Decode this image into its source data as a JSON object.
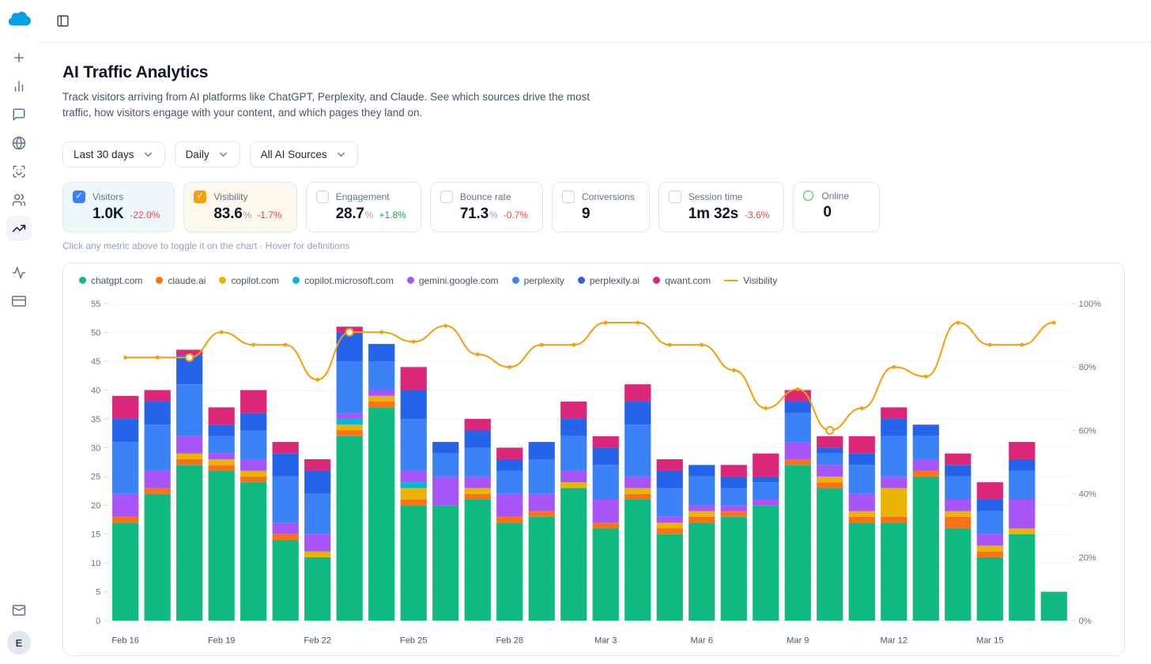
{
  "brand": {
    "color": "#00a1e0"
  },
  "topbar": {
    "toggle_icon": "panel-left-icon"
  },
  "sidebar": {
    "items": [
      {
        "icon": "plus-icon"
      },
      {
        "icon": "bar-chart-icon"
      },
      {
        "icon": "chat-icon"
      },
      {
        "icon": "globe-icon"
      },
      {
        "icon": "scan-face-icon"
      },
      {
        "icon": "users-icon"
      },
      {
        "icon": "trending-up-icon",
        "active": true
      },
      {
        "icon": "activity-icon"
      },
      {
        "icon": "credit-card-icon"
      }
    ],
    "bottom": {
      "mail_icon": "mail-icon",
      "avatar_initial": "E"
    }
  },
  "page": {
    "title": "AI Traffic Analytics",
    "description": "Track visitors arriving from AI platforms like ChatGPT, Perplexity, and Claude. See which sources drive the most traffic, how visitors engage with your content, and which pages they land on.",
    "hint": "Click any metric above to toggle it on the chart · Hover for definitions"
  },
  "filters": [
    {
      "label": "Last 30 days"
    },
    {
      "label": "Daily"
    },
    {
      "label": "All AI Sources"
    }
  ],
  "metrics": [
    {
      "label": "Visitors",
      "value": "1.0K",
      "suffix": "",
      "delta": "-22.0%",
      "delta_dir": "down",
      "state": "checked-blue",
      "accent": "blue"
    },
    {
      "label": "Visibility",
      "value": "83.6",
      "suffix": "%",
      "delta": "-1.7%",
      "delta_dir": "down",
      "state": "checked-amber",
      "accent": "amber"
    },
    {
      "label": "Engagement",
      "value": "28.7",
      "suffix": "%",
      "delta": "+1.8%",
      "delta_dir": "up",
      "state": "unchecked",
      "accent": "none"
    },
    {
      "label": "Bounce rate",
      "value": "71.3",
      "suffix": "%",
      "delta": "-0.7%",
      "delta_dir": "down",
      "state": "unchecked",
      "accent": "none"
    },
    {
      "label": "Conversions",
      "value": "9",
      "suffix": "",
      "delta": "",
      "delta_dir": "none",
      "state": "unchecked",
      "accent": "none"
    },
    {
      "label": "Session time",
      "value": "1m 32s",
      "suffix": "",
      "delta": "-3.6%",
      "delta_dir": "down",
      "state": "unchecked",
      "accent": "none"
    },
    {
      "label": "Online",
      "value": "0",
      "suffix": "",
      "delta": "",
      "delta_dir": "none",
      "state": "online",
      "accent": "none"
    }
  ],
  "chart_data": {
    "type": "bar",
    "subtype": "stacked_bar_with_line",
    "title": "AI traffic by source with visibility overlay",
    "categories": [
      "Feb 16",
      "Feb 17",
      "Feb 18",
      "Feb 19",
      "Feb 20",
      "Feb 21",
      "Feb 22",
      "Feb 23",
      "Feb 24",
      "Feb 25",
      "Feb 26",
      "Feb 27",
      "Feb 28",
      "Mar 1",
      "Mar 2",
      "Mar 3",
      "Mar 4",
      "Mar 5",
      "Mar 6",
      "Mar 7",
      "Mar 8",
      "Mar 9",
      "Mar 10",
      "Mar 11",
      "Mar 12",
      "Mar 13",
      "Mar 14",
      "Mar 15",
      "Mar 16",
      "Mar 17"
    ],
    "series": [
      {
        "name": "chatgpt.com",
        "color": "#10b981",
        "values": [
          17,
          22,
          27,
          26,
          24,
          14,
          11,
          32,
          37,
          20,
          20,
          21,
          17,
          18,
          23,
          16,
          21,
          15,
          17,
          18,
          20,
          27,
          23,
          17,
          17,
          25,
          16,
          11,
          15,
          5
        ]
      },
      {
        "name": "claude.ai",
        "color": "#f97316",
        "values": [
          1,
          1,
          1,
          1,
          1,
          1,
          0,
          1,
          1,
          1,
          0,
          1,
          1,
          1,
          0,
          1,
          1,
          1,
          1,
          1,
          0,
          1,
          1,
          1,
          1,
          1,
          2,
          1,
          0,
          0
        ]
      },
      {
        "name": "copilot.com",
        "color": "#eab308",
        "values": [
          0,
          0,
          1,
          1,
          1,
          0,
          1,
          1,
          1,
          2,
          0,
          1,
          0,
          0,
          1,
          0,
          1,
          1,
          1,
          0,
          0,
          0,
          1,
          1,
          5,
          0,
          1,
          1,
          1,
          0
        ]
      },
      {
        "name": "copilot.microsoft.com",
        "color": "#06b6d4",
        "values": [
          0,
          0,
          0,
          0,
          0,
          0,
          0,
          1,
          0,
          1,
          0,
          0,
          0,
          0,
          0,
          0,
          0,
          0,
          0,
          0,
          0,
          0,
          0,
          0,
          0,
          0,
          0,
          0,
          0,
          0
        ]
      },
      {
        "name": "gemini.google.com",
        "color": "#a855f7",
        "values": [
          4,
          3,
          3,
          1,
          2,
          2,
          3,
          1,
          1,
          2,
          5,
          2,
          4,
          3,
          2,
          4,
          2,
          1,
          1,
          1,
          1,
          3,
          2,
          3,
          2,
          2,
          2,
          2,
          5,
          0
        ]
      },
      {
        "name": "perplexity",
        "color": "#3b82f6",
        "values": [
          9,
          8,
          9,
          3,
          5,
          8,
          7,
          9,
          5,
          9,
          4,
          5,
          4,
          6,
          6,
          6,
          9,
          5,
          5,
          3,
          3,
          5,
          2,
          5,
          7,
          4,
          4,
          4,
          5,
          0
        ]
      },
      {
        "name": "perplexity.ai",
        "color": "#2563eb",
        "values": [
          4,
          4,
          5,
          2,
          3,
          4,
          4,
          5,
          3,
          5,
          2,
          3,
          2,
          3,
          3,
          3,
          4,
          3,
          2,
          2,
          1,
          2,
          1,
          2,
          3,
          2,
          2,
          2,
          2,
          0
        ]
      },
      {
        "name": "qwant.com",
        "color": "#db2777",
        "values": [
          4,
          2,
          1,
          3,
          4,
          2,
          2,
          1,
          0,
          4,
          0,
          2,
          2,
          0,
          3,
          2,
          3,
          2,
          0,
          2,
          4,
          2,
          2,
          3,
          2,
          0,
          2,
          3,
          3,
          0
        ]
      }
    ],
    "line_series": {
      "name": "Visibility",
      "color": "#f59e0b",
      "axis": "right",
      "values": [
        83,
        83,
        83,
        91,
        87,
        87,
        76,
        91,
        91,
        88,
        93,
        84,
        80,
        87,
        87,
        94,
        94,
        87,
        87,
        79,
        67,
        73,
        60,
        67,
        80,
        77,
        94,
        87,
        87,
        94
      ],
      "highlighted_points": [
        2,
        7,
        22
      ]
    },
    "left_axis": {
      "min": 0,
      "max": 55,
      "step": 5
    },
    "right_axis": {
      "min": 0,
      "max": 100,
      "step": 20,
      "suffix": "%"
    },
    "x_label_every": 3,
    "grid": true,
    "legend_position": "top-left"
  }
}
